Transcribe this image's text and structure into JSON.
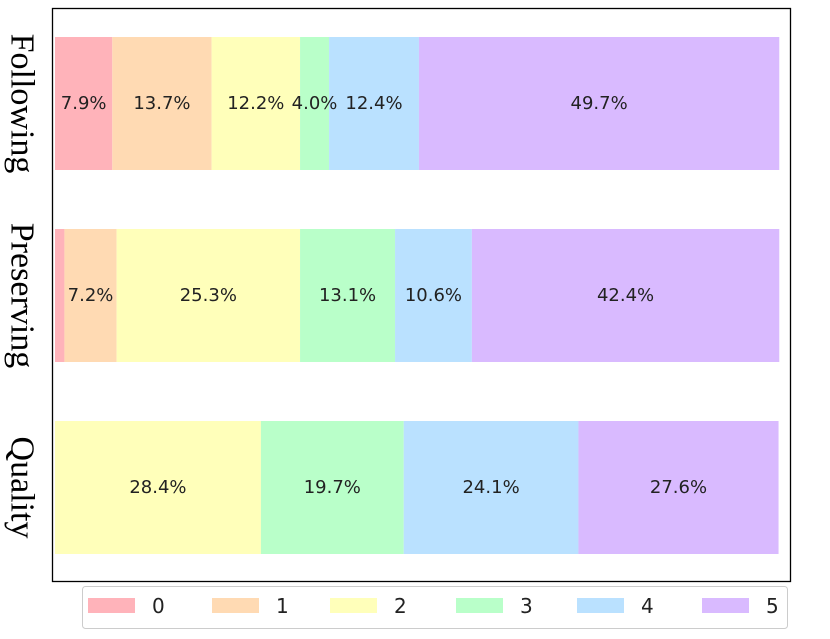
{
  "chart_data": {
    "type": "bar",
    "orientation": "horizontal",
    "stacked": true,
    "categories": [
      "Following",
      "Preserving",
      "Quality"
    ],
    "series": [
      {
        "name": "0",
        "color": "#ffb3ba",
        "values": [
          7.9,
          1.3,
          0.0
        ]
      },
      {
        "name": "1",
        "color": "#ffdab3",
        "values": [
          13.7,
          7.2,
          0.0
        ]
      },
      {
        "name": "2",
        "color": "#ffffba",
        "values": [
          12.2,
          25.3,
          28.4
        ]
      },
      {
        "name": "3",
        "color": "#b9ffc9",
        "values": [
          4.0,
          13.1,
          19.7
        ]
      },
      {
        "name": "4",
        "color": "#bae1ff",
        "values": [
          12.4,
          10.6,
          24.1
        ]
      },
      {
        "name": "5",
        "color": "#d9baff",
        "values": [
          49.7,
          42.4,
          27.6
        ]
      }
    ],
    "data_labels": [
      [
        "7.9%",
        "13.7%",
        "12.2%",
        "4.0%",
        "12.4%",
        "49.7%"
      ],
      [
        "",
        "7.2%",
        "25.3%",
        "13.1%",
        "10.6%",
        "42.4%"
      ],
      [
        "",
        "",
        "28.4%",
        "19.7%",
        "24.1%",
        "27.6%"
      ]
    ],
    "xlim": [
      0,
      100
    ],
    "grid": false,
    "legend": "bottom"
  }
}
